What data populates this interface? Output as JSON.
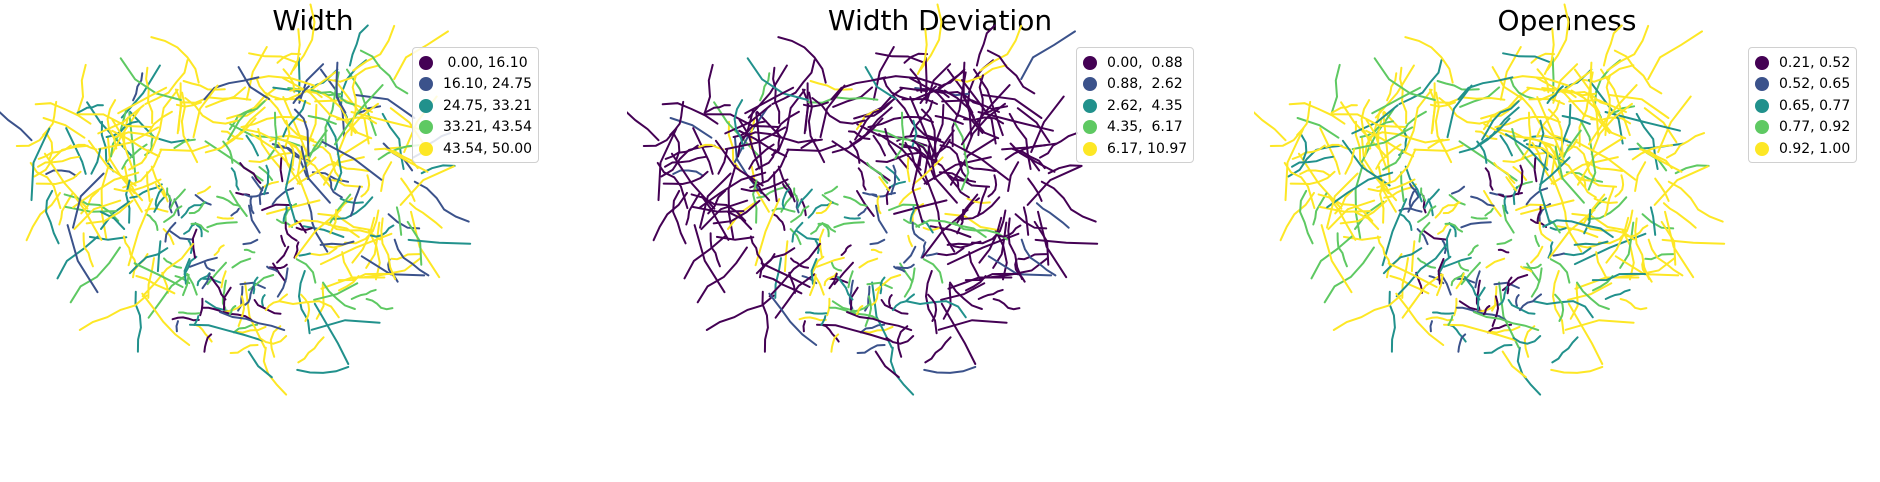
{
  "palette": [
    "#440154",
    "#3b528b",
    "#21918c",
    "#5ec962",
    "#fde725"
  ],
  "panels": [
    {
      "title": "Width",
      "legend": [
        {
          "label": " 0.00, 16.10",
          "color": "#440154"
        },
        {
          "label": "16.10, 24.75",
          "color": "#3b528b"
        },
        {
          "label": "24.75, 33.21",
          "color": "#21918c"
        },
        {
          "label": "33.21, 43.54",
          "color": "#5ec962"
        },
        {
          "label": "43.54, 50.00",
          "color": "#fde725"
        }
      ],
      "dominant_color": "#fde725"
    },
    {
      "title": "Width Deviation",
      "legend": [
        {
          "label": "0.00,  0.88",
          "color": "#440154"
        },
        {
          "label": "0.88,  2.62",
          "color": "#3b528b"
        },
        {
          "label": "2.62,  4.35",
          "color": "#21918c"
        },
        {
          "label": "4.35,  6.17",
          "color": "#5ec962"
        },
        {
          "label": "6.17, 10.97",
          "color": "#fde725"
        }
      ],
      "dominant_color": "#440154"
    },
    {
      "title": "Openness",
      "legend": [
        {
          "label": "0.21, 0.52",
          "color": "#440154"
        },
        {
          "label": "0.52, 0.65",
          "color": "#3b528b"
        },
        {
          "label": "0.65, 0.77",
          "color": "#21918c"
        },
        {
          "label": "0.77, 0.92",
          "color": "#5ec962"
        },
        {
          "label": "0.92, 1.00",
          "color": "#fde725"
        }
      ],
      "dominant_color": "#fde725"
    }
  ]
}
